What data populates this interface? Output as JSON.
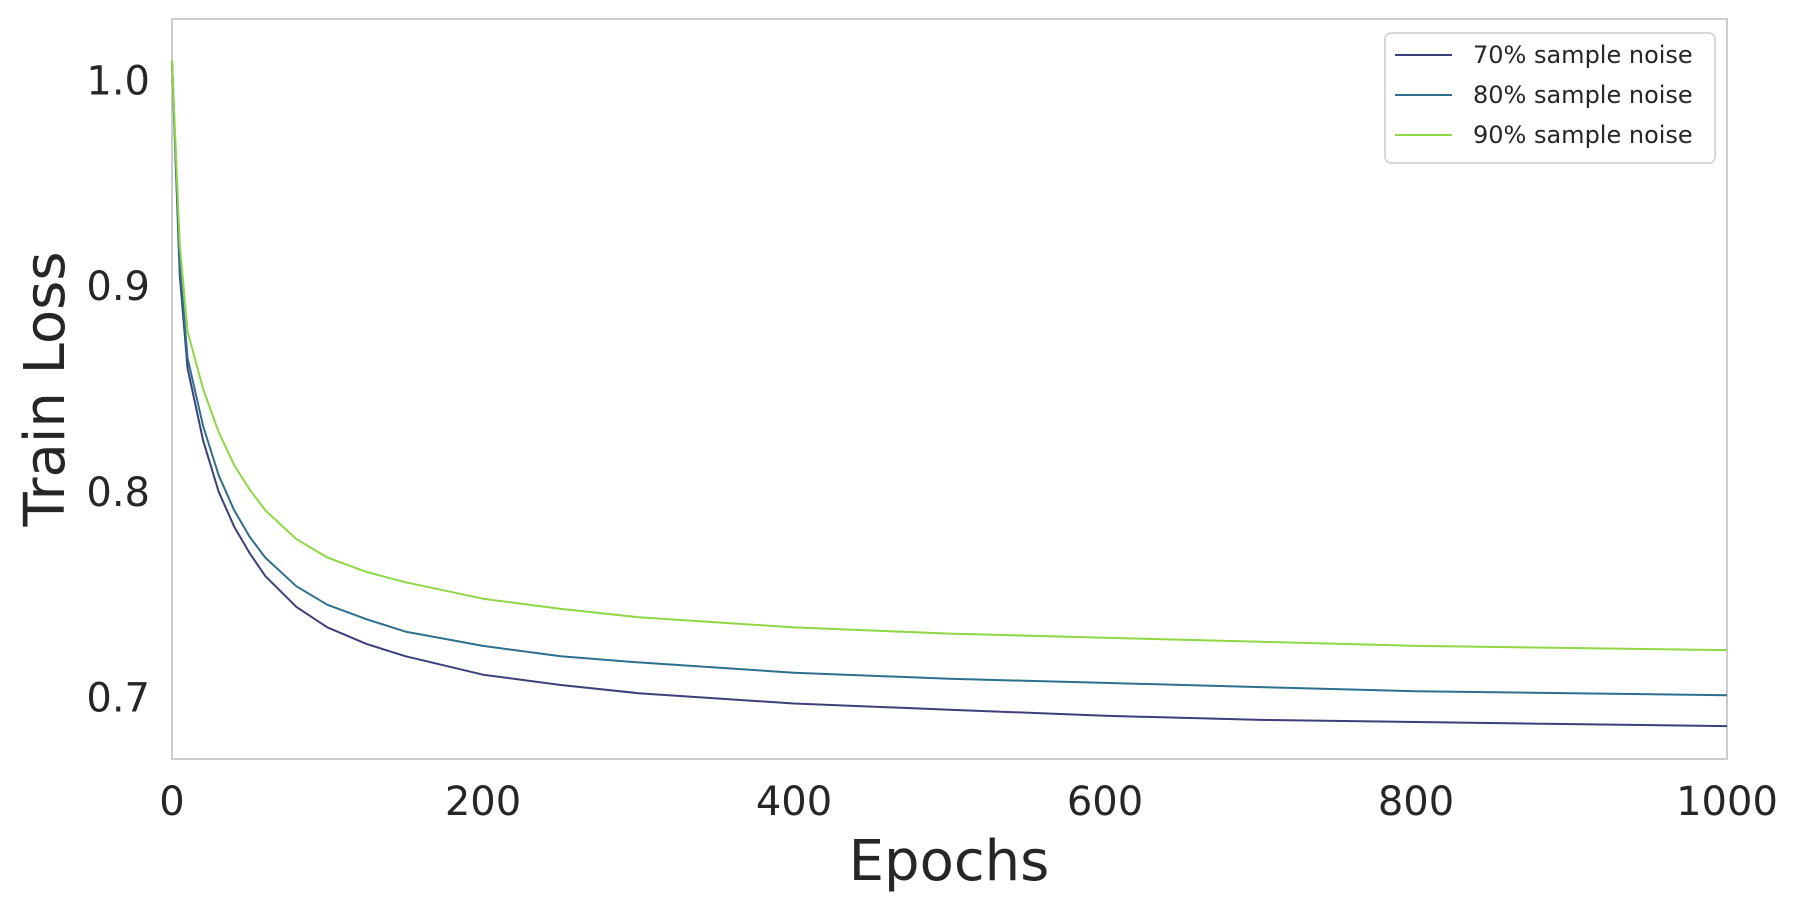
{
  "chart_data": {
    "type": "line",
    "title": "",
    "xlabel": "Epochs",
    "ylabel": "Train Loss",
    "xlim": [
      0,
      1000
    ],
    "ylim": [
      0.67,
      1.03
    ],
    "xticks": [
      0,
      200,
      400,
      600,
      800,
      1000
    ],
    "xtick_labels": [
      "0",
      "200",
      "400",
      "600",
      "800",
      "1000"
    ],
    "yticks": [
      0.7,
      0.8,
      0.9,
      1.0
    ],
    "ytick_labels": [
      "0.7",
      "0.8",
      "0.9",
      "1.0"
    ],
    "grid": false,
    "legend_position": "top-right",
    "x": [
      0,
      5,
      10,
      20,
      30,
      40,
      50,
      60,
      80,
      100,
      125,
      150,
      200,
      250,
      300,
      400,
      500,
      600,
      700,
      800,
      900,
      1000
    ],
    "series": [
      {
        "name": "70% sample noise",
        "color": "#3b3f7a",
        "values": [
          1.01,
          0.905,
          0.86,
          0.825,
          0.8,
          0.783,
          0.77,
          0.759,
          0.744,
          0.734,
          0.726,
          0.72,
          0.711,
          0.706,
          0.702,
          0.697,
          0.694,
          0.691,
          0.689,
          0.688,
          0.687,
          0.686
        ]
      },
      {
        "name": "80% sample noise",
        "color": "#2e6f8e",
        "values": [
          1.01,
          0.91,
          0.865,
          0.832,
          0.808,
          0.791,
          0.778,
          0.768,
          0.754,
          0.745,
          0.738,
          0.732,
          0.725,
          0.72,
          0.717,
          0.712,
          0.709,
          0.707,
          0.705,
          0.703,
          0.702,
          0.701
        ]
      },
      {
        "name": "90% sample noise",
        "color": "#8fd744",
        "values": [
          1.01,
          0.92,
          0.878,
          0.85,
          0.829,
          0.813,
          0.801,
          0.791,
          0.777,
          0.768,
          0.761,
          0.756,
          0.748,
          0.743,
          0.739,
          0.734,
          0.731,
          0.729,
          0.727,
          0.725,
          0.724,
          0.723
        ]
      }
    ]
  }
}
